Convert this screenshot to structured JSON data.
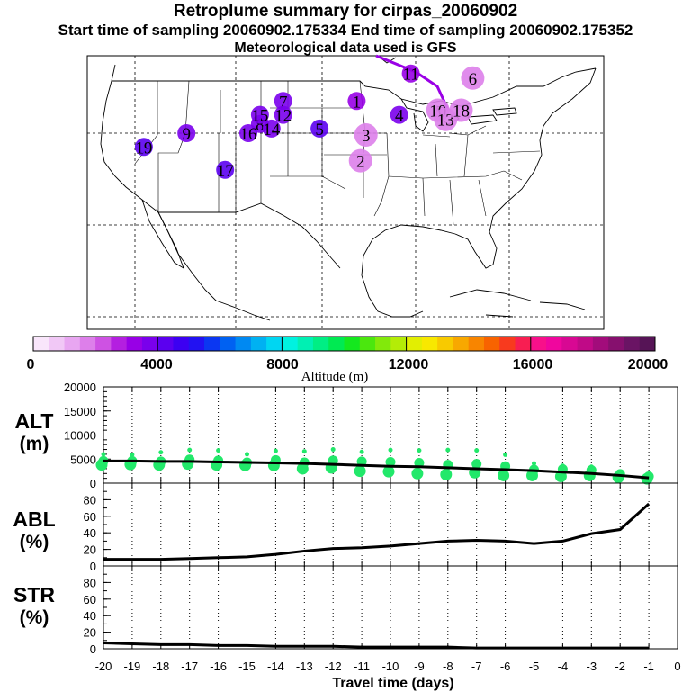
{
  "header": {
    "title": "Retroplume summary for cirpas_20060902",
    "sampling": "Start time of sampling 20060902.175334     End time of sampling 20060902.175352",
    "met": "Meteorological data used is GFS"
  },
  "colors": {
    "colorbar": [
      "#f9e6fb",
      "#f1c8f6",
      "#e8a6f1",
      "#dd7fea",
      "#ce52e3",
      "#b41fe0",
      "#9800e6",
      "#7a00ec",
      "#5b00ef",
      "#3c00f2",
      "#2212f2",
      "#0b37f2",
      "#0061f2",
      "#0089f2",
      "#00b1f2",
      "#00d6f2",
      "#00f2e0",
      "#00f0b3",
      "#00ee84",
      "#00ea52",
      "#14e81e",
      "#4be70e",
      "#82e90b",
      "#b4ec07",
      "#e2ee02",
      "#f8e800",
      "#f8ca00",
      "#f8a800",
      "#f88500",
      "#f86300",
      "#f83a1e",
      "#f81e52",
      "#f8108a",
      "#f0069e",
      "#d80893",
      "#c00a87",
      "#a20c7b",
      "#86106e",
      "#6a1464",
      "#561456"
    ],
    "alt_dots": "#22e86a",
    "land": "#ffffff"
  },
  "chart_data": [
    {
      "type": "scatter",
      "name": "retroplume-map",
      "region": "North America (United States, Mexico, Caribbean)",
      "color_meaning": "plume altitude",
      "clusters": [
        {
          "label": "1",
          "lon": -91.0,
          "lat": 43.5,
          "alt_m": 3200
        },
        {
          "label": "2",
          "lon": -90.5,
          "lat": 37.0,
          "alt_m": 1500
        },
        {
          "label": "3",
          "lon": -89.8,
          "lat": 39.8,
          "alt_m": 1500
        },
        {
          "label": "4",
          "lon": -85.5,
          "lat": 42.0,
          "alt_m": 3600
        },
        {
          "label": "5",
          "lon": -95.8,
          "lat": 40.5,
          "alt_m": 4000
        },
        {
          "label": "6",
          "lon": -76.0,
          "lat": 46.0,
          "alt_m": 1500
        },
        {
          "label": "7",
          "lon": -100.5,
          "lat": 43.5,
          "alt_m": 3800
        },
        {
          "label": "8",
          "lon": -103.5,
          "lat": 41.0,
          "alt_m": 3700
        },
        {
          "label": "9",
          "lon": -113.0,
          "lat": 40.0,
          "alt_m": 3700
        },
        {
          "label": "10",
          "lon": -80.5,
          "lat": 42.5,
          "alt_m": 1500
        },
        {
          "label": "11",
          "lon": -84.0,
          "lat": 46.5,
          "alt_m": 3300
        },
        {
          "label": "12",
          "lon": -100.5,
          "lat": 42.0,
          "alt_m": 3800
        },
        {
          "label": "13",
          "lon": -79.5,
          "lat": 41.5,
          "alt_m": 1500
        },
        {
          "label": "14",
          "lon": -102.0,
          "lat": 40.5,
          "alt_m": 3800
        },
        {
          "label": "15",
          "lon": -103.5,
          "lat": 42.0,
          "alt_m": 3800
        },
        {
          "label": "16",
          "lon": -105.0,
          "lat": 40.0,
          "alt_m": 3900
        },
        {
          "label": "17",
          "lon": -108.0,
          "lat": 36.0,
          "alt_m": 4300
        },
        {
          "label": "18",
          "lon": -77.5,
          "lat": 42.5,
          "alt_m": 1500
        },
        {
          "label": "19",
          "lon": -118.5,
          "lat": 38.5,
          "alt_m": 4300
        }
      ]
    },
    {
      "type": "bar",
      "name": "altitude-colorbar",
      "xlabel": "Altitude (m)",
      "range": [
        0,
        20000
      ],
      "tick_labels": [
        "0",
        "4000",
        "8000",
        "12000",
        "16000",
        "20000"
      ]
    },
    {
      "type": "line",
      "name": "ALT",
      "ylabel": "ALT (m)",
      "ylim": [
        0,
        20000
      ],
      "y_ticks": [
        "20000",
        "15000",
        "10000",
        "5000",
        "0"
      ],
      "x": [
        -20,
        -19,
        -18,
        -17,
        -16,
        -15,
        -14,
        -13,
        -12,
        -11,
        -10,
        -9,
        -8,
        -7,
        -6,
        -5,
        -4,
        -3,
        -2,
        -1
      ],
      "mean": [
        4600,
        4600,
        4500,
        4500,
        4400,
        4300,
        4200,
        4100,
        3900,
        3700,
        3500,
        3400,
        3200,
        3000,
        2800,
        2600,
        2300,
        2000,
        1600,
        1100
      ],
      "dot_values": [
        [
          6000,
          4600,
          3800
        ],
        [
          5900,
          4600,
          3900
        ],
        [
          6400,
          4500,
          3800
        ],
        [
          6900,
          4900,
          4000
        ],
        [
          6800,
          4700,
          3800
        ],
        [
          6000,
          4300,
          3700
        ],
        [
          6700,
          4800,
          3700
        ],
        [
          6600,
          4300,
          3000
        ],
        [
          7000,
          4700,
          3200
        ],
        [
          6500,
          4500,
          2500
        ],
        [
          6900,
          4400,
          2400
        ],
        [
          6800,
          4200,
          2000
        ],
        [
          6900,
          3800,
          1800
        ],
        [
          6800,
          4000,
          2200
        ],
        [
          5900,
          3500,
          1600
        ],
        [
          4100,
          2800,
          1600
        ],
        [
          3600,
          2900,
          1400
        ],
        [
          3400,
          2700,
          1600
        ],
        [
          2300,
          1900,
          1200
        ],
        [
          1800,
          1400,
          900
        ]
      ]
    },
    {
      "type": "line",
      "name": "ABL",
      "ylabel": "ABL (%)",
      "ylim": [
        0,
        100
      ],
      "y_ticks": [
        "80",
        "60",
        "40",
        "20",
        "0"
      ],
      "x": [
        -20,
        -19,
        -18,
        -17,
        -16,
        -15,
        -14,
        -13,
        -12,
        -11,
        -10,
        -9,
        -8,
        -7,
        -6,
        -5,
        -4,
        -3,
        -2,
        -1
      ],
      "values": [
        8,
        8,
        8,
        9,
        10,
        11,
        14,
        18,
        21,
        22,
        24,
        27,
        30,
        31,
        30,
        27,
        30,
        39,
        44,
        75
      ]
    },
    {
      "type": "line",
      "name": "STR",
      "ylabel": "STR (%)",
      "ylim": [
        0,
        100
      ],
      "y_ticks": [
        "80",
        "60",
        "40",
        "20",
        "0"
      ],
      "x": [
        -20,
        -19,
        -18,
        -17,
        -16,
        -15,
        -14,
        -13,
        -12,
        -11,
        -10,
        -9,
        -8,
        -7,
        -6,
        -5,
        -4,
        -3,
        -2,
        -1
      ],
      "values": [
        7,
        6,
        5,
        5,
        4,
        4,
        3,
        3,
        3,
        2,
        2,
        2,
        2,
        1,
        1,
        1,
        1,
        1,
        1,
        1
      ],
      "xlabel": "Travel time (days)",
      "x_tick_labels": [
        "-20",
        "-19",
        "-18",
        "-17",
        "-16",
        "-15",
        "-14",
        "-13",
        "-12",
        "-11",
        "-10",
        "-9",
        "-8",
        "-7",
        "-6",
        "-5",
        "-4",
        "-3",
        "-2",
        "-1",
        "0"
      ]
    }
  ]
}
